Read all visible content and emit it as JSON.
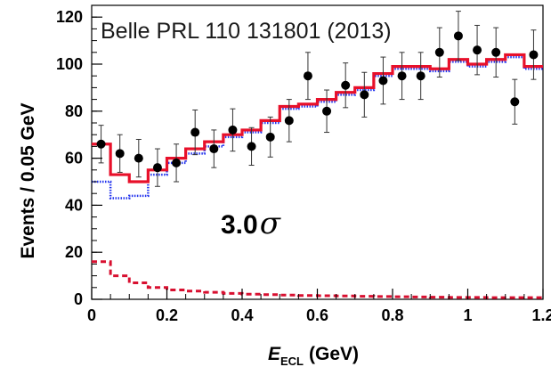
{
  "chart_data": {
    "type": "histogram",
    "title": "Belle PRL 110 131801 (2013)",
    "annotation": {
      "value": "3.0",
      "symbol": "σ"
    },
    "xlabel": {
      "main": "E",
      "sub": "ECL",
      "unit": "(GeV)"
    },
    "ylabel": "Events / 0.05 GeV",
    "xlim": [
      0,
      1.2
    ],
    "ylim": [
      0,
      125
    ],
    "xticks": [
      0,
      0.2,
      0.4,
      0.6,
      0.8,
      1,
      1.2
    ],
    "xtick_labels": [
      "0",
      "0.2",
      "0.4",
      "0.6",
      "0.8",
      "1",
      "1.2"
    ],
    "yticks": [
      0,
      20,
      40,
      60,
      80,
      100,
      120
    ],
    "ytick_labels": [
      "0",
      "20",
      "40",
      "60",
      "80",
      "100",
      "120"
    ],
    "bin_edges": [
      0,
      0.05,
      0.1,
      0.15,
      0.2,
      0.25,
      0.3,
      0.35,
      0.4,
      0.45,
      0.5,
      0.55,
      0.6,
      0.65,
      0.7,
      0.75,
      0.8,
      0.85,
      0.9,
      0.95,
      1.0,
      1.05,
      1.1,
      1.15,
      1.2
    ],
    "grid": false,
    "legend": "none",
    "series": [
      {
        "style": "solid-histogram",
        "color": "#e8102a",
        "values": [
          66,
          53,
          50,
          55,
          60,
          64,
          67,
          70,
          72,
          76,
          82,
          83,
          85,
          88,
          90,
          96,
          99,
          99,
          98,
          102,
          100,
          102,
          104,
          99
        ]
      },
      {
        "style": "dotted-histogram",
        "color": "#2233ee",
        "values": [
          50,
          43,
          44,
          53,
          58,
          62,
          65,
          69,
          71,
          75,
          81,
          82,
          84,
          87,
          89,
          95,
          98,
          98,
          97,
          101,
          99,
          101,
          103,
          98
        ]
      },
      {
        "style": "dashed-histogram",
        "color": "#d81030",
        "values": [
          16,
          10,
          7,
          5,
          4,
          3.5,
          3,
          2.5,
          2.2,
          2,
          1.8,
          1.6,
          1.5,
          1.4,
          1.3,
          1.2,
          1.1,
          1.0,
          0.9,
          0.8,
          0.8,
          0.7,
          0.7,
          0.7
        ]
      },
      {
        "style": "points-with-errors",
        "color": "#000000",
        "x": [
          0.025,
          0.075,
          0.125,
          0.175,
          0.225,
          0.275,
          0.325,
          0.375,
          0.425,
          0.475,
          0.525,
          0.575,
          0.625,
          0.675,
          0.725,
          0.775,
          0.825,
          0.875,
          0.925,
          0.975,
          1.025,
          1.075,
          1.125,
          1.175
        ],
        "y": [
          66,
          62,
          60,
          56,
          58,
          71,
          64,
          72,
          65,
          69,
          76,
          95,
          80,
          91,
          87,
          93,
          95,
          95,
          105,
          112,
          106,
          105,
          84,
          104
        ],
        "err": [
          8,
          8,
          8,
          8,
          8,
          9.5,
          8,
          9,
          8,
          8.5,
          9,
          10,
          9,
          9.5,
          9.5,
          10,
          10,
          10,
          10.5,
          10.5,
          10.5,
          10.5,
          9.5,
          10.5
        ]
      }
    ]
  }
}
